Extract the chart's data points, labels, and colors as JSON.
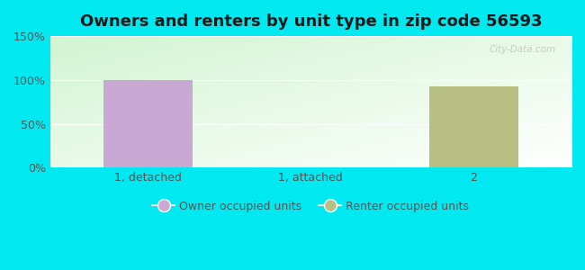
{
  "title": "Owners and renters by unit type in zip code 56593",
  "categories": [
    "1, detached",
    "1, attached",
    "2"
  ],
  "owner_values": [
    100,
    0,
    0
  ],
  "renter_values": [
    0,
    0,
    93
  ],
  "owner_color": "#c9a8d4",
  "renter_color": "#b8bf82",
  "ylim": [
    0,
    150
  ],
  "yticks": [
    0,
    50,
    100,
    150
  ],
  "ytick_labels": [
    "0%",
    "50%",
    "100%",
    "150%"
  ],
  "bar_width": 0.55,
  "title_fontsize": 13,
  "legend_owner": "Owner occupied units",
  "legend_renter": "Renter occupied units",
  "outer_bg": "#00e8f0",
  "watermark": "City-Data.com"
}
